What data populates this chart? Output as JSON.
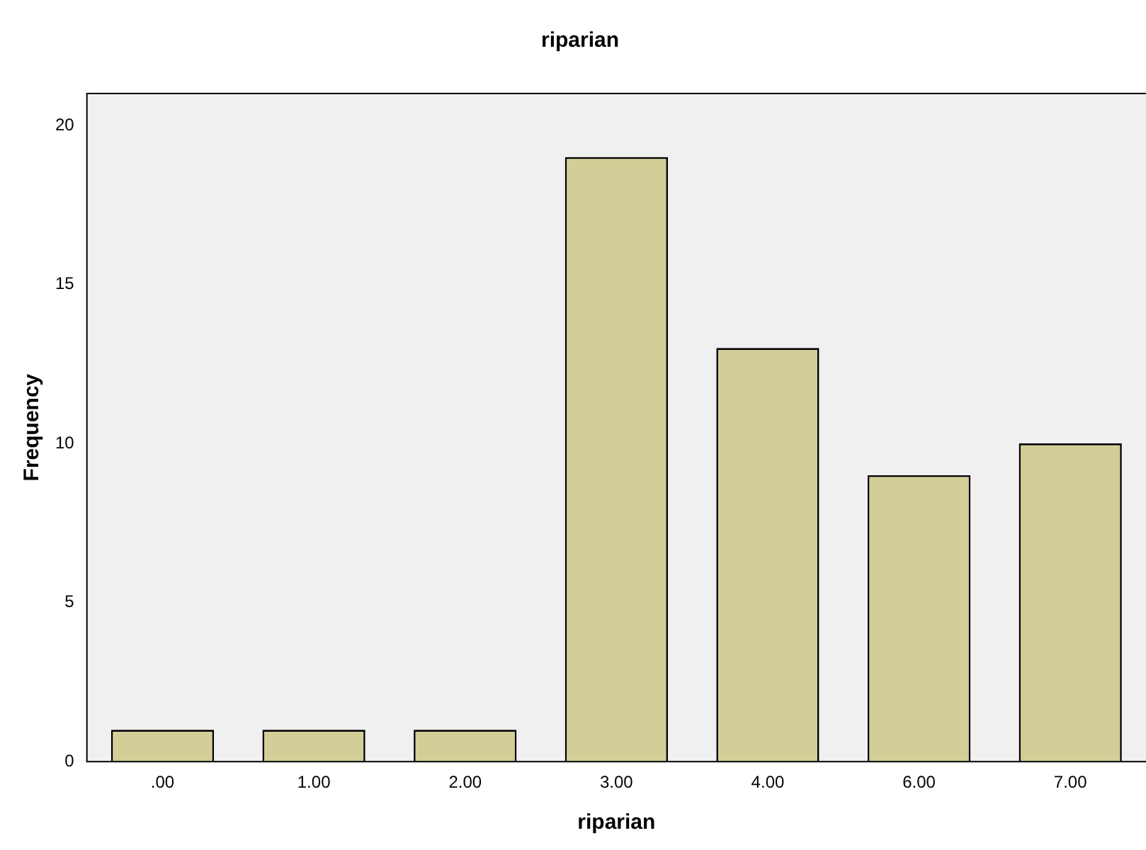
{
  "chart_data": {
    "type": "bar",
    "title": "riparian",
    "xlabel": "riparian",
    "ylabel": "Frequency",
    "categories": [
      ".00",
      "1.00",
      "2.00",
      "3.00",
      "4.00",
      "6.00",
      "7.00"
    ],
    "values": [
      1,
      1,
      1,
      19,
      13,
      9,
      10
    ],
    "color": "#d3ce97",
    "ylim": [
      0,
      21
    ],
    "yticks": [
      0,
      5,
      10,
      15,
      20
    ],
    "grid": false,
    "legend": false
  }
}
